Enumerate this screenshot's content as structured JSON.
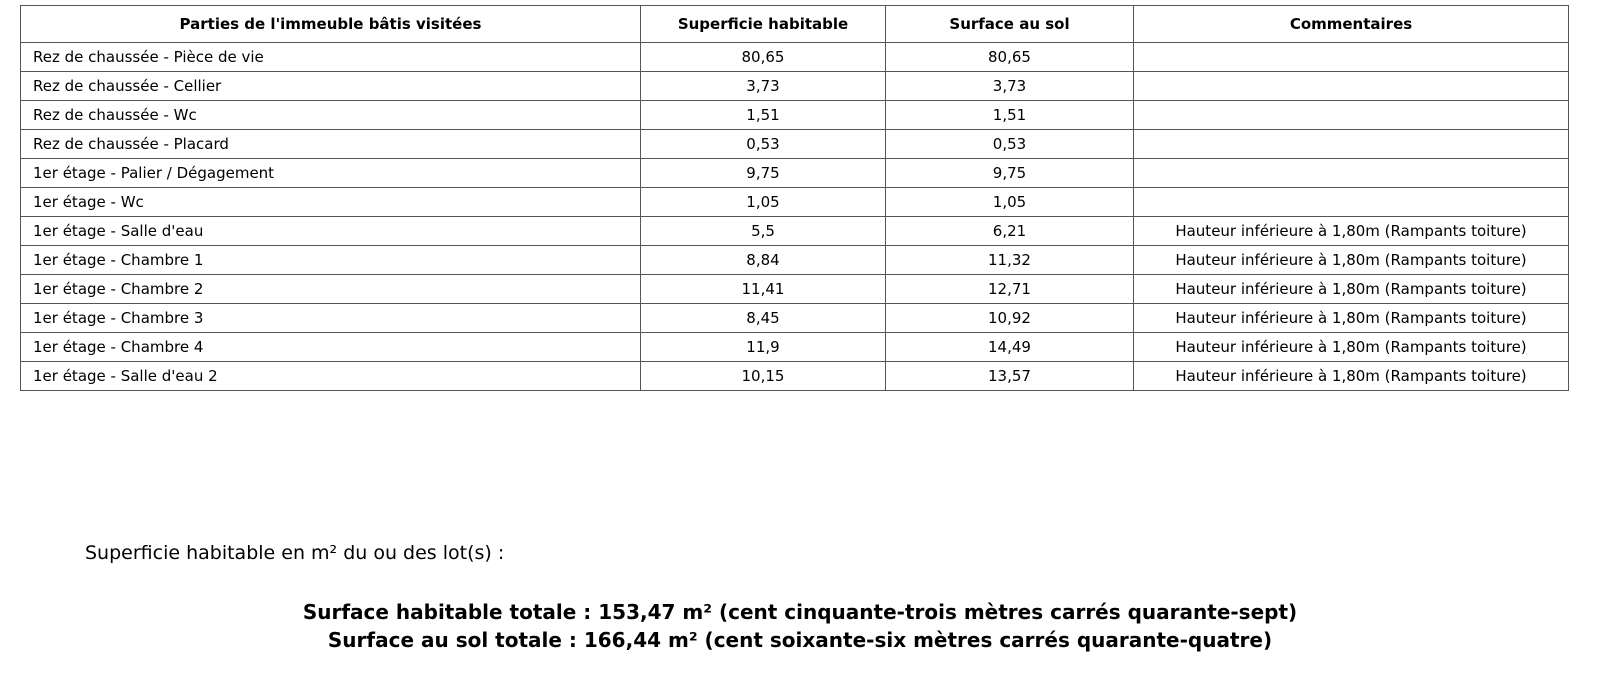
{
  "table": {
    "headers": [
      "Parties de l'immeuble bâtis visitées",
      "Superficie habitable",
      "Surface au sol",
      "Commentaires"
    ],
    "rows": [
      [
        "Rez de chaussée - Pièce de vie",
        "80,65",
        "80,65"
      ],
      [
        "Rez de chaussée - Cellier",
        "3,73",
        "3,73"
      ],
      [
        "Rez de chaussée - Wc",
        "1,51",
        "1,51"
      ],
      [
        "Rez de chaussée - Placard",
        "0,53",
        "0,53"
      ],
      [
        "1er étage - Palier / Dégagement",
        "9,75",
        "9,75"
      ],
      [
        "1er étage - Wc",
        "1,05",
        "1,05"
      ],
      [
        "1er étage - Salle d'eau",
        "5,5",
        "6,21",
        "Hauteur inférieure à 1,80m (Rampants toiture)"
      ],
      [
        "1er étage - Chambre 1",
        "8,84",
        "11,32",
        "Hauteur inférieure à 1,80m (Rampants toiture)"
      ],
      [
        "1er étage - Chambre 2",
        "11,41",
        "12,71",
        "Hauteur inférieure à 1,80m (Rampants toiture)"
      ],
      [
        "1er étage - Chambre 3",
        "8,45",
        "10,92",
        "Hauteur inférieure à 1,80m (Rampants toiture)"
      ],
      [
        "1er étage - Chambre 4",
        "11,9",
        "14,49",
        "Hauteur inférieure à 1,80m (Rampants toiture)"
      ],
      [
        "1er étage - Salle d'eau 2",
        "10,15",
        "13,57",
        "Hauteur inférieure à 1,80m (Rampants toiture)"
      ]
    ]
  },
  "note": "Superficie habitable en m² du ou des lot(s) :",
  "totals": [
    "Surface habitable totale : 153,47 m² (cent cinquante-trois mètres carrés quarante-sept)",
    "Surface au sol totale : 166,44 m² (cent soixante-six mètres carrés quarante-quatre)"
  ]
}
